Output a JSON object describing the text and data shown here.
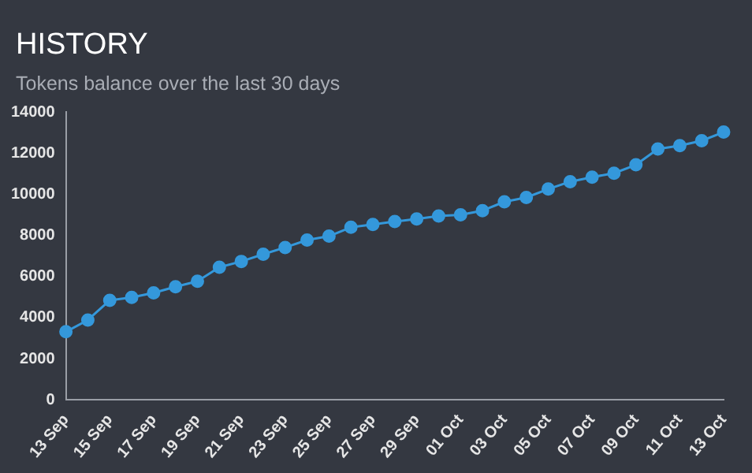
{
  "chart_data": {
    "type": "line",
    "title": "HISTORY",
    "subtitle": "Tokens balance over the last 30 days",
    "categories": [
      "13 Sep",
      null,
      "15 Sep",
      null,
      "17 Sep",
      null,
      "19 Sep",
      null,
      "21 Sep",
      null,
      "23 Sep",
      null,
      "25 Sep",
      null,
      "27 Sep",
      null,
      "29 Sep",
      null,
      "01 Oct",
      null,
      "03 Oct",
      null,
      "05 Oct",
      null,
      "07 Oct",
      null,
      "09 Oct",
      null,
      "11 Oct",
      null,
      "13 Oct"
    ],
    "series": [
      {
        "color": "#3498db",
        "values": [
          3310,
          3880,
          4840,
          4980,
          5200,
          5500,
          5770,
          6450,
          6730,
          7080,
          7410,
          7770,
          7960,
          8390,
          8530,
          8670,
          8800,
          8940,
          9000,
          9200,
          9630,
          9840,
          10250,
          10610,
          10830,
          11020,
          11430,
          12200,
          12360,
          12600,
          13020
        ]
      }
    ],
    "ylim": [
      0,
      14000
    ],
    "yticks": [
      0,
      2000,
      4000,
      6000,
      8000,
      10000,
      12000,
      14000
    ],
    "grid": false,
    "legend": false,
    "marker": "circle",
    "line_style": "solid"
  }
}
